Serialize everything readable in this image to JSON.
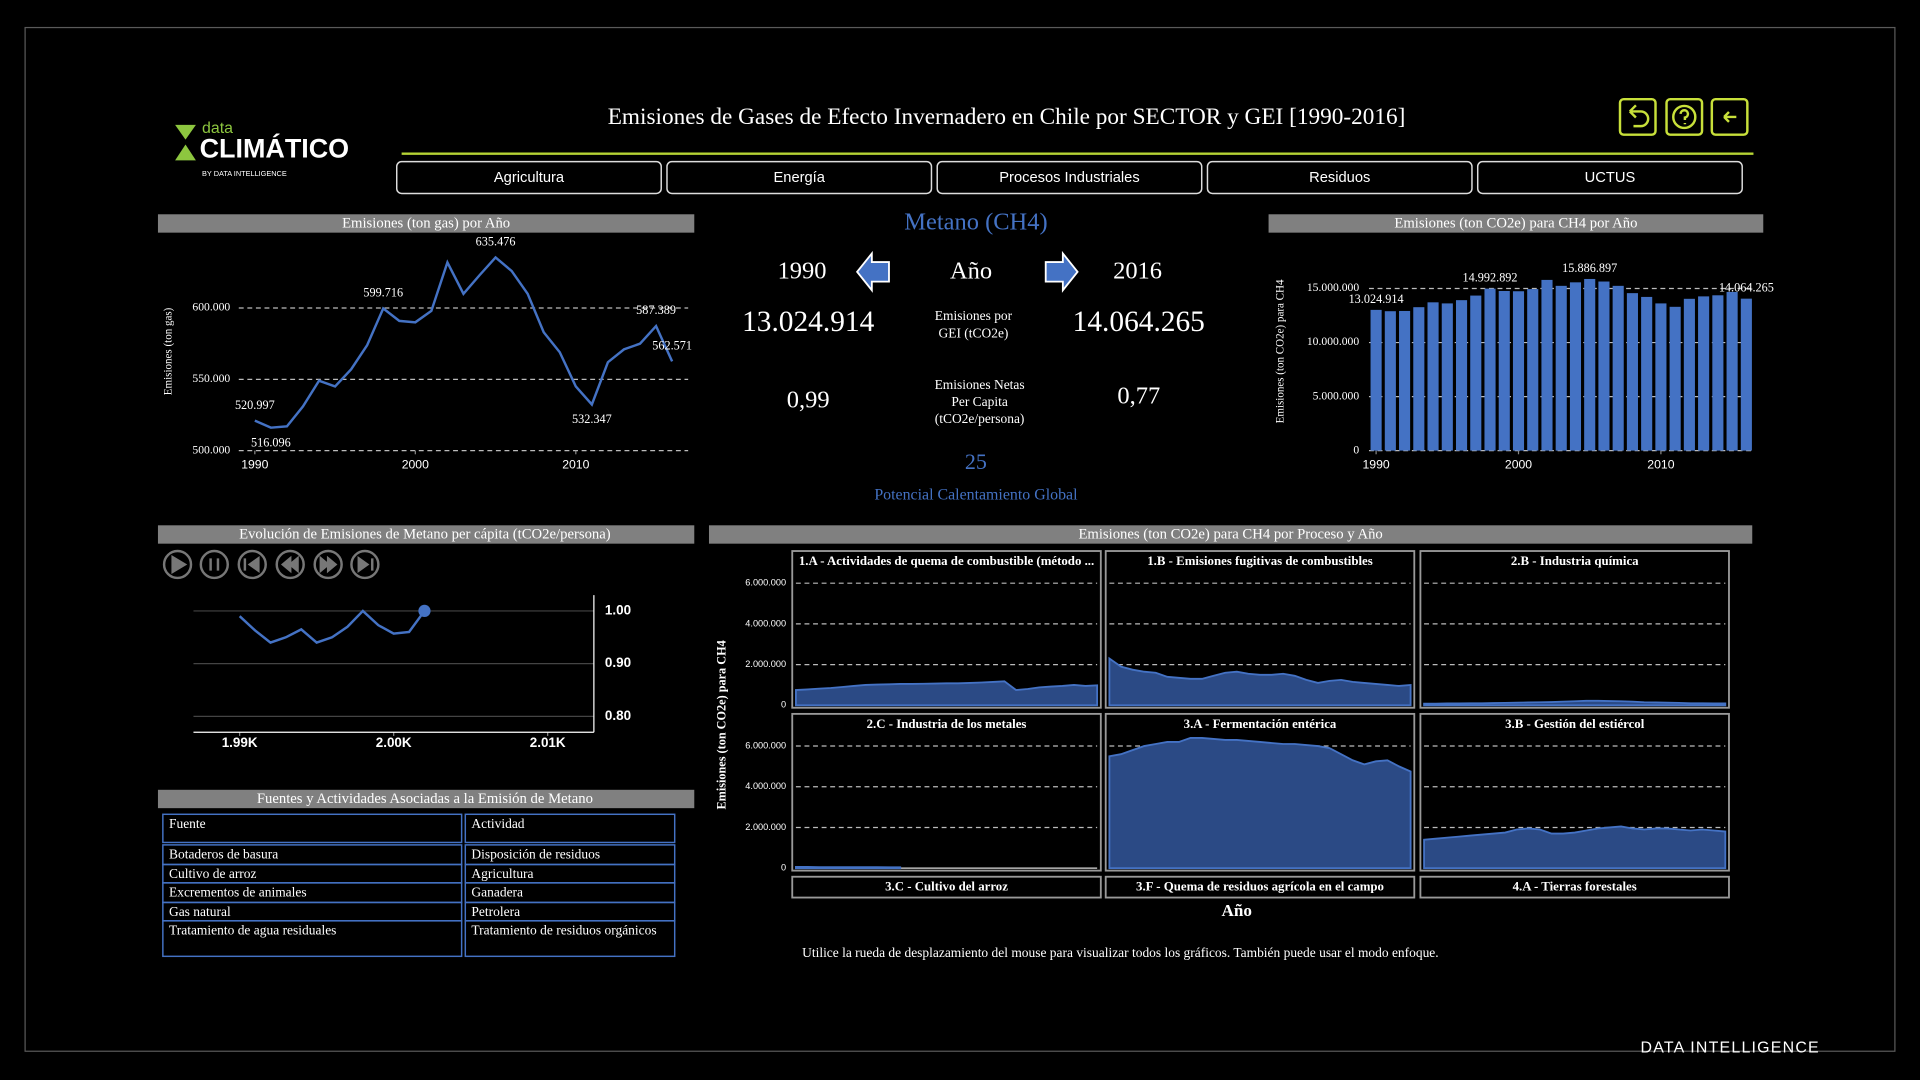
{
  "header": {
    "logo": {
      "top": "data",
      "main": "CLIMÁTICO",
      "sub": "BY DATA INTELLIGENCE"
    },
    "title": "Emisiones de Gases de Efecto Invernadero en Chile por SECTOR y GEI [1990-2016]"
  },
  "nav": [
    "Agricultura",
    "Energía",
    "Procesos Industriales",
    "Residuos",
    "UCTUS"
  ],
  "kpi": {
    "gas": "Metano (CH4)",
    "year_start": "1990",
    "year_label": "Año",
    "year_end": "2016",
    "emissions_start": "13.024.914",
    "emissions_label": [
      "Emisiones por",
      "GEI (tCO2e)"
    ],
    "emissions_end": "14.064.265",
    "per_capita_start": "0,99",
    "per_capita_label": [
      "Emisiones Netas",
      "Per Capita",
      "(tCO2e/persona)"
    ],
    "per_capita_end": "0,77",
    "gwp": "25",
    "gwp_label": "Potencial Calentamiento Global"
  },
  "table": {
    "title": "Fuentes y Actividades Asociadas a la Emisión de Metano",
    "columns": [
      "Fuente",
      "Actividad"
    ],
    "rows": [
      [
        "Botaderos de basura",
        "Disposición de residuos"
      ],
      [
        "Cultivo de arroz",
        "Agricultura"
      ],
      [
        "Excrementos de animales",
        "Ganadera"
      ],
      [
        "Gas natural",
        "Petrolera"
      ],
      [
        "Tratamiento de agua residuales",
        "Tratamiento de residuos orgánicos"
      ]
    ]
  },
  "note": "Utilice la rueda de desplazamiento del mouse para visualizar todos los gráficos. También puede usar el modo enfoque.",
  "footer": "DATA INTELLIGENCE",
  "chart_data": [
    {
      "type": "line",
      "title": "Emisiones (ton gas) por Año",
      "y_label": "Emisiones (ton gas)",
      "x": [
        1990,
        1991,
        1992,
        1993,
        1994,
        1995,
        1996,
        1997,
        1998,
        1999,
        2000,
        2001,
        2002,
        2003,
        2004,
        2005,
        2006,
        2007,
        2008,
        2009,
        2010,
        2011,
        2012,
        2013,
        2014,
        2015,
        2016
      ],
      "xlim": [
        1989,
        2017
      ],
      "xticks": [
        1990,
        2000,
        2010
      ],
      "ylim": [
        500000,
        640000
      ],
      "yticks": [
        {
          "value": 500000,
          "label": "500.000"
        },
        {
          "value": 550000,
          "label": "550.000"
        },
        {
          "value": 600000,
          "label": "600.000"
        }
      ],
      "grid": true,
      "color": "#4472c4",
      "values": [
        520997,
        516096,
        517000,
        531000,
        549000,
        545000,
        557000,
        574000,
        599716,
        591000,
        590000,
        598000,
        632000,
        610000,
        623000,
        635476,
        626000,
        610000,
        583000,
        569000,
        545000,
        532347,
        562000,
        571000,
        575000,
        587389,
        562571
      ],
      "value_labels": [
        "520.997",
        "516.096",
        null,
        null,
        null,
        null,
        null,
        null,
        "599.716",
        null,
        null,
        null,
        null,
        null,
        null,
        "635.476",
        null,
        null,
        null,
        null,
        null,
        "532.347",
        null,
        null,
        null,
        "587.389",
        "562.571"
      ]
    },
    {
      "type": "bar",
      "title": "Emisiones (ton CO2e) para CH4 por Año",
      "y_label": "Emisiones (ton CO2e) para CH4",
      "x": [
        1990,
        1991,
        1992,
        1993,
        1994,
        1995,
        1996,
        1997,
        1998,
        1999,
        2000,
        2001,
        2002,
        2003,
        2004,
        2005,
        2006,
        2007,
        2008,
        2009,
        2010,
        2011,
        2012,
        2013,
        2014,
        2015,
        2016
      ],
      "xlim": [
        1989.5,
        2016.5
      ],
      "xticks": [
        1990,
        2000,
        2010
      ],
      "ylim": [
        0,
        17000000
      ],
      "yticks": [
        0,
        {
          "value": 5000000,
          "label": "5.000.000"
        },
        {
          "value": 10000000,
          "label": "10.000.000"
        },
        {
          "value": 15000000,
          "label": "15.000.000"
        }
      ],
      "grid": true,
      "color": "#4472c4",
      "values": [
        13024914,
        12902400,
        12925000,
        13275000,
        13725000,
        13625000,
        13925000,
        14350000,
        14992892,
        14775000,
        14750000,
        14950000,
        15800000,
        15250000,
        15575000,
        15886897,
        15650000,
        15250000,
        14575000,
        14225000,
        13625000,
        13308675,
        14050000,
        14275000,
        14375000,
        14684725,
        14064265
      ],
      "value_labels": [
        "13.024.914",
        null,
        null,
        null,
        null,
        null,
        null,
        null,
        "14.992.892",
        null,
        null,
        null,
        null,
        null,
        null,
        "15.886.897",
        null,
        null,
        null,
        null,
        null,
        null,
        null,
        null,
        null,
        null,
        "14.064.265"
      ]
    },
    {
      "type": "line",
      "title": "Evolución de Emisiones de Metano per cápita (tCO2e/persona)",
      "x": [
        1990,
        1991,
        1992,
        1993,
        1994,
        1995,
        1996,
        1997,
        1998,
        1999,
        2000,
        2001,
        2002
      ],
      "xlim": [
        1987,
        2013
      ],
      "xticks": [
        {
          "value": 1990,
          "label": "1.99K"
        },
        {
          "value": 2000,
          "label": "2.00K"
        },
        {
          "value": 2010,
          "label": "2.01K"
        }
      ],
      "ylim": [
        0.77,
        1.03
      ],
      "yticks": [
        {
          "value": 0.8,
          "label": "0.80"
        },
        {
          "value": 0.9,
          "label": "0.90"
        },
        {
          "value": 1,
          "label": "1.00"
        }
      ],
      "grid": true,
      "y_axis_side": "right",
      "color": "#4472c4",
      "values": [
        0.99,
        0.963,
        0.94,
        0.95,
        0.965,
        0.94,
        0.95,
        0.97,
        1.0,
        0.973,
        0.957,
        0.96,
        1.0
      ]
    },
    {
      "type": "area",
      "title": "Emisiones (ton CO2e) para CH4 por Proceso y Año",
      "y_label": "Emisiones (ton CO2e) para CH4",
      "x_label": "Año",
      "x": [
        1990,
        1991,
        1992,
        1993,
        1994,
        1995,
        1996,
        1997,
        1998,
        1999,
        2000,
        2001,
        2002,
        2003,
        2004,
        2005,
        2006,
        2007,
        2008,
        2009,
        2010,
        2011,
        2012,
        2013,
        2014,
        2015,
        2016
      ],
      "xlim": [
        1990,
        2016
      ],
      "ylim": [
        0,
        7400000
      ],
      "yticks": [
        0,
        {
          "value": 2000000,
          "label": "2.000.000"
        },
        {
          "value": 4000000,
          "label": "4.000.000"
        },
        {
          "value": 6000000,
          "label": "6.000.000"
        }
      ],
      "grid": true,
      "color": "#4472c4",
      "series": [
        {
          "name": "1.A - Actividades de quema de combustible (método ...",
          "values": [
            750000,
            780000,
            820000,
            850000,
            900000,
            950000,
            1000000,
            1020000,
            1030000,
            1050000,
            1050000,
            1060000,
            1070000,
            1080000,
            1080000,
            1100000,
            1120000,
            1150000,
            1180000,
            750000,
            800000,
            880000,
            920000,
            950000,
            1000000,
            950000,
            980000
          ]
        },
        {
          "name": "1.B - Emisiones fugitivas de combustibles",
          "values": [
            2300000,
            1900000,
            1750000,
            1650000,
            1600000,
            1400000,
            1350000,
            1300000,
            1300000,
            1450000,
            1600000,
            1650000,
            1550000,
            1500000,
            1500000,
            1550000,
            1450000,
            1250000,
            1100000,
            1200000,
            1250000,
            1150000,
            1100000,
            1050000,
            1000000,
            950000,
            1000000
          ]
        },
        {
          "name": "2.B - Industria química",
          "values": [
            80000,
            80000,
            90000,
            90000,
            100000,
            100000,
            110000,
            120000,
            130000,
            140000,
            150000,
            160000,
            180000,
            200000,
            220000,
            220000,
            210000,
            200000,
            180000,
            150000,
            140000,
            130000,
            120000,
            100000,
            100000,
            90000,
            90000
          ]
        },
        {
          "name": "2.C - Industria de los metales",
          "values": [
            60000,
            60000,
            50000,
            50000,
            50000,
            50000,
            50000,
            50000,
            40000,
            40000,
            null,
            null,
            null,
            null,
            null,
            null,
            null,
            null,
            null,
            null,
            null,
            null,
            null,
            null,
            null,
            null,
            null
          ]
        },
        {
          "name": "3.A - Fermentación entérica",
          "values": [
            5500000,
            5600000,
            5800000,
            6000000,
            6100000,
            6200000,
            6200000,
            6400000,
            6400000,
            6350000,
            6300000,
            6300000,
            6250000,
            6200000,
            6150000,
            6100000,
            6100000,
            6050000,
            6000000,
            5900000,
            5600000,
            5300000,
            5100000,
            5250000,
            5300000,
            5000000,
            4750000
          ]
        },
        {
          "name": "3.B - Gestión del estiércol",
          "values": [
            1400000,
            1450000,
            1500000,
            1550000,
            1600000,
            1650000,
            1700000,
            1750000,
            1900000,
            1950000,
            1900000,
            1700000,
            1700000,
            1750000,
            1850000,
            1950000,
            2000000,
            2050000,
            1950000,
            1900000,
            1950000,
            1950000,
            1900000,
            1850000,
            1900000,
            1850000,
            1800000
          ]
        },
        {
          "name": "3.C - Cultivo del arroz"
        },
        {
          "name": "3.F - Quema de residuos agrícola en el campo"
        },
        {
          "name": "4.A - Tierras forestales"
        }
      ]
    }
  ]
}
